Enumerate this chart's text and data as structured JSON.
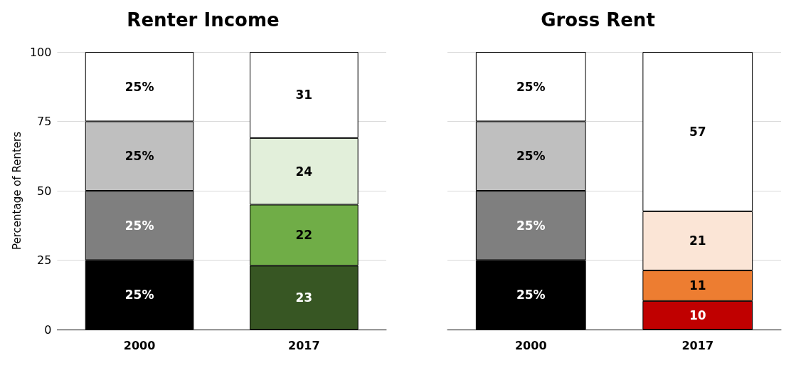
{
  "chart_data": [
    {
      "type": "bar",
      "title": "Renter Income",
      "ylabel": "Percentage of Renters",
      "categories": [
        "2000",
        "2017"
      ],
      "stacked": true,
      "ylim": [
        0,
        100
      ],
      "yticks": [
        0,
        25,
        50,
        75,
        100
      ],
      "grid": "y",
      "series": [
        {
          "colors": [
            "#000000",
            "#375623"
          ],
          "values": [
            25,
            23
          ],
          "value_labels": [
            "25%",
            "23"
          ]
        },
        {
          "colors": [
            "#7f7f7f",
            "#70ad47"
          ],
          "values": [
            25,
            22
          ],
          "value_labels": [
            "25%",
            "22"
          ]
        },
        {
          "colors": [
            "#bfbfbf",
            "#e2efda"
          ],
          "values": [
            25,
            24
          ],
          "value_labels": [
            "25%",
            "24"
          ]
        },
        {
          "colors": [
            "#ffffff",
            "#ffffff"
          ],
          "values": [
            25,
            31
          ],
          "value_labels": [
            "25%",
            "31"
          ]
        }
      ]
    },
    {
      "type": "bar",
      "title": "Gross Rent",
      "categories": [
        "2000",
        "2017"
      ],
      "stacked": true,
      "ylim": [
        0,
        100
      ],
      "yticks": [
        0,
        25,
        50,
        75,
        100
      ],
      "grid": "y",
      "tick_labels": "x",
      "series": [
        {
          "colors": [
            "#000000",
            "#c00000"
          ],
          "values": [
            25,
            10.3
          ],
          "value_labels": [
            "25%",
            "10"
          ]
        },
        {
          "colors": [
            "#7f7f7f",
            "#ed7d31"
          ],
          "values": [
            25,
            11
          ],
          "value_labels": [
            "25%",
            "11"
          ]
        },
        {
          "colors": [
            "#bfbfbf",
            "#fbe5d6"
          ],
          "values": [
            25,
            21.3
          ],
          "value_labels": [
            "25%",
            "21"
          ]
        },
        {
          "colors": [
            "#ffffff",
            "#ffffff"
          ],
          "values": [
            25,
            57.4
          ],
          "value_labels": [
            "25%",
            "57"
          ]
        }
      ]
    }
  ]
}
